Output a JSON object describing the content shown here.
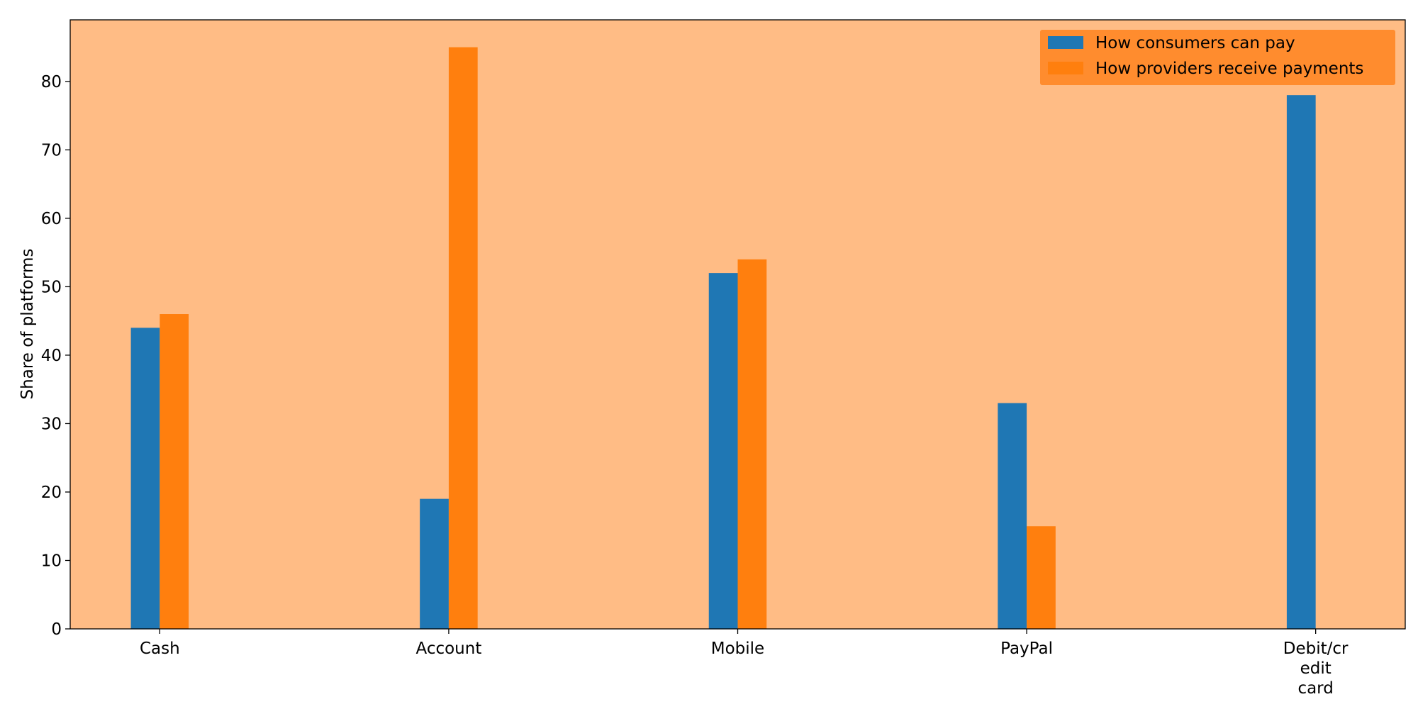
{
  "chart_data": {
    "type": "bar",
    "categories": [
      "Cash",
      "Account",
      "Mobile",
      "PayPal",
      "Debit/credit card"
    ],
    "category_tick_lines": [
      [
        "Cash"
      ],
      [
        "Account"
      ],
      [
        "Mobile"
      ],
      [
        "PayPal"
      ],
      [
        "Debit/cr",
        "edit",
        "card"
      ]
    ],
    "series": [
      {
        "name": "How consumers can pay",
        "values": [
          44,
          19,
          52,
          33,
          78
        ],
        "color": "#1f77b4"
      },
      {
        "name": "How providers receive payments",
        "values": [
          46,
          85,
          54,
          15,
          0
        ],
        "color": "#ff7f0e"
      }
    ],
    "title": "",
    "xlabel": "",
    "ylabel": "Share of platforms",
    "ylim": [
      0,
      89
    ],
    "yticks": [
      0,
      10,
      20,
      30,
      40,
      50,
      60,
      70,
      80
    ],
    "grid": false,
    "legend_position": "top-right",
    "plot_background": "#ffbc85",
    "legend_background": "#ff8c2e"
  }
}
